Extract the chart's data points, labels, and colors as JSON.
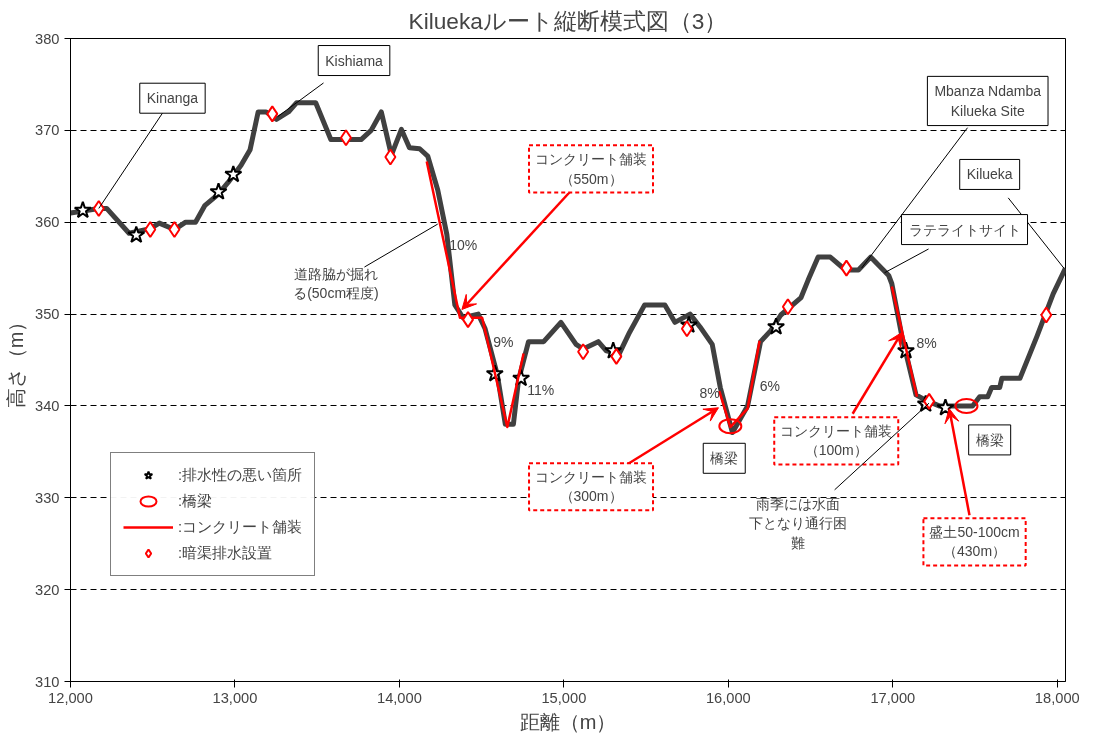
{
  "chart_data": {
    "type": "line",
    "title": "Kiluekaルート縦断模式図（3）",
    "xlabel": "距離（m）",
    "ylabel": "高さ（m）",
    "xlim": [
      12000,
      18050
    ],
    "ylim": [
      310,
      380
    ],
    "xticks": [
      {
        "value": 12000,
        "label": "12,000"
      },
      {
        "value": 13000,
        "label": "13,000"
      },
      {
        "value": 14000,
        "label": "14,000"
      },
      {
        "value": 15000,
        "label": "15,000"
      },
      {
        "value": 16000,
        "label": "16,000"
      },
      {
        "value": 17000,
        "label": "17,000"
      },
      {
        "value": 18000,
        "label": "18,000"
      }
    ],
    "yticks": [
      310,
      320,
      330,
      340,
      350,
      360,
      370,
      380
    ],
    "grid": "y",
    "legend": "left",
    "series": [
      {
        "color": "#404040",
        "x": [
          12000,
          12172,
          12220,
          12356,
          12485,
          12540,
          12632,
          12700,
          12760,
          12816,
          12896,
          12957,
          13037,
          13092,
          13141,
          13190,
          13252,
          13325,
          13374,
          13491,
          13583,
          13767,
          13828,
          13890,
          13951,
          14012,
          14061,
          14123,
          14172,
          14233,
          14288,
          14337,
          14387,
          14479,
          14521,
          14595,
          14644,
          14693,
          14724,
          14785,
          14877,
          14982,
          15074,
          15117,
          15209,
          15258,
          15337,
          15399,
          15491,
          15614,
          15675,
          15767,
          15828,
          15902,
          15951,
          16025,
          16117,
          16196,
          16258,
          16319,
          16442,
          16485,
          16546,
          16620,
          16712,
          16791,
          16865,
          16975,
          16994,
          17055,
          17141,
          17202,
          17282,
          17485,
          17528,
          17577,
          17601,
          17650,
          17663,
          17773,
          17877,
          17975,
          18050
        ],
        "values": [
          361,
          361.5,
          361.5,
          358.8,
          359.3,
          359.9,
          359.2,
          360,
          360,
          361.8,
          363,
          364.3,
          366.2,
          367.9,
          372,
          372,
          371.2,
          372,
          373,
          373,
          369,
          369,
          370,
          372,
          367.3,
          370.1,
          368.1,
          368,
          367.2,
          363.5,
          358.7,
          351,
          349.6,
          350,
          348.4,
          343.4,
          338,
          338,
          342.8,
          347,
          347,
          349.1,
          346.7,
          346.2,
          347,
          346,
          345.7,
          348,
          351,
          351,
          349.1,
          350,
          348.6,
          346.7,
          342,
          337.1,
          340,
          347,
          348.2,
          349.9,
          351.8,
          353.7,
          356.2,
          356.2,
          354.8,
          354.8,
          356.2,
          354.2,
          353.3,
          347.6,
          341.2,
          340.6,
          340,
          340,
          341,
          341,
          342,
          342,
          343,
          343,
          347.6,
          352.2,
          355
        ]
      },
      {
        "name": ":排水性の悪い箇所",
        "type": "scatter",
        "marker": "star",
        "color": "#000000",
        "x": [
          12075,
          12400,
          12900,
          12990,
          14580,
          14740,
          15300,
          15760,
          16290,
          17080,
          17200,
          17320
        ],
        "values": [
          361.3,
          358.6,
          363.3,
          365.2,
          343.5,
          343,
          346,
          348.8,
          348.6,
          346,
          340.2,
          339.8
        ]
      },
      {
        "name": ":橋梁",
        "type": "scatter",
        "marker": "circle",
        "color": "#ff0000",
        "x": [
          16012,
          17448
        ],
        "values": [
          337.8,
          340
        ]
      },
      {
        "name": ":コンクリート舗装",
        "type": "line",
        "color": "#ff0000",
        "x": [
          14166,
          14368,
          14503,
          14656,
          14755,
          14800,
          15945,
          16012,
          16117,
          16190,
          16500,
          16994,
          17147
        ],
        "values": [
          366.6,
          349.6,
          349.6,
          337.7,
          345.7,
          null,
          341.6,
          337.7,
          339.7,
          347.1,
          null,
          353,
          341
        ]
      },
      {
        "name": ":暗渠排水設置",
        "type": "scatter",
        "marker": "diamond",
        "color": "#ff0000",
        "x": [
          12172,
          12485,
          12632,
          13227,
          13675,
          13945,
          14417,
          15117,
          15319,
          15748,
          16362,
          16718,
          17221,
          17933
        ],
        "values": [
          361.5,
          359.2,
          359.2,
          371.8,
          369.2,
          367.1,
          349.4,
          345.9,
          345.4,
          348.4,
          350.8,
          355,
          340.5,
          349.9
        ]
      }
    ],
    "annotations": [
      {
        "text": "Kinanga",
        "x": 12172,
        "y": 361.5
      },
      {
        "text": "Kishiama",
        "x": 13260,
        "y": 371.5
      },
      {
        "text": "Mbanza Ndamba Kilueka Site",
        "x": 16810,
        "y": 355
      },
      {
        "text": "Kilueka",
        "x": 18040,
        "y": 355
      },
      {
        "text": "ラテライトサイト",
        "x": 16950,
        "y": 354.5
      },
      {
        "text": "道路脇が掘れる(50cm程度)",
        "x": 14233,
        "y": 359.8
      },
      {
        "text": "コンクリート舗装（550m）",
        "x": 14380,
        "y": 350.5
      },
      {
        "text": "10%",
        "x": 14288,
        "y": 358.7
      },
      {
        "text": "9%",
        "x": 14521,
        "y": 348.4
      },
      {
        "text": "11%",
        "x": 14724,
        "y": 342.8
      },
      {
        "text": "8%",
        "x": 15951,
        "y": 342
      },
      {
        "text": "6%",
        "x": 16117,
        "y": 340
      },
      {
        "text": "8%",
        "x": 17055,
        "y": 347.6
      },
      {
        "text": "橋梁",
        "x": 16012,
        "y": 337.5
      },
      {
        "text": "コンクリート舗装（300m）",
        "x": 15940,
        "y": 339.8
      },
      {
        "text": "コンクリート舗装（100m）",
        "x": 17055,
        "y": 348
      },
      {
        "text": "橋梁",
        "x": 17448,
        "y": 340
      },
      {
        "text": "雨季には水面下となり通行困難",
        "x": 17220,
        "y": 340.3
      },
      {
        "text": "盛土50-100cm（430m）",
        "x": 17343,
        "y": 339.7
      }
    ]
  }
}
